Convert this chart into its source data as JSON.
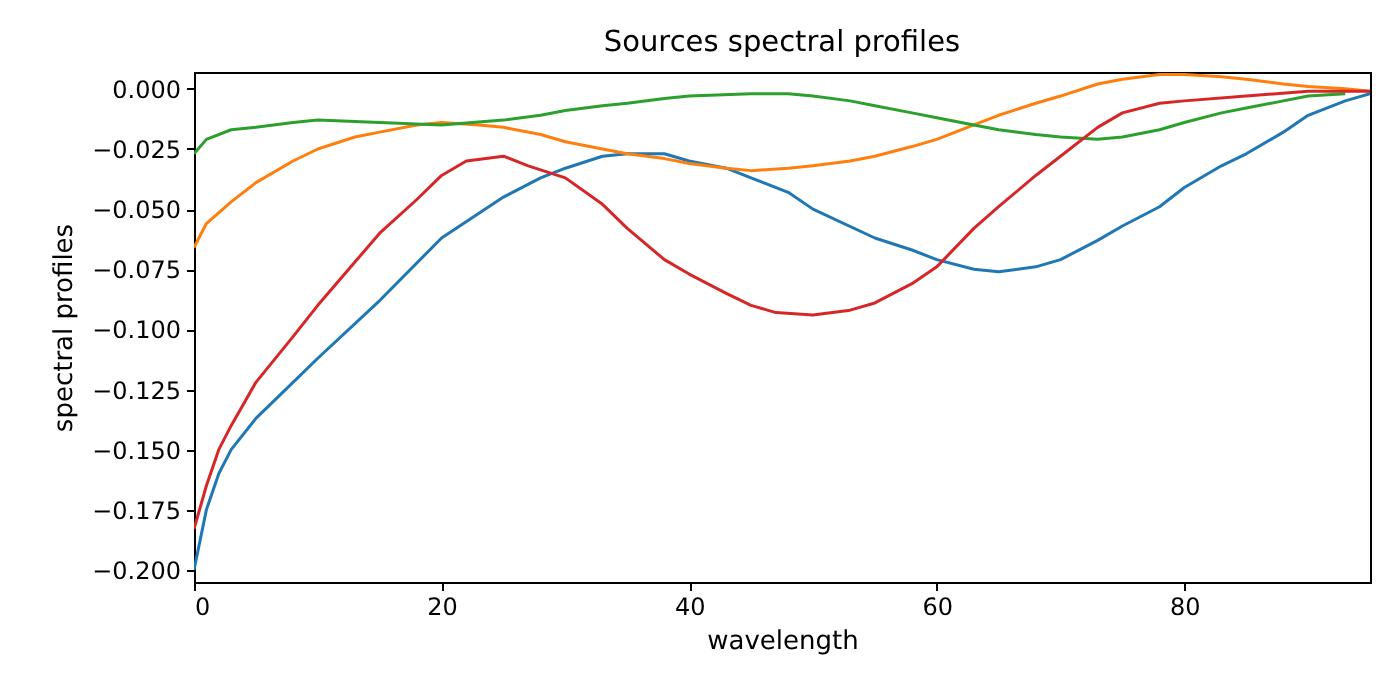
{
  "chart_data": {
    "type": "line",
    "title": "Sources spectral profiles",
    "xlabel": "wavelength",
    "ylabel": "spectral profiles",
    "xlim": [
      0,
      95
    ],
    "ylim": [
      -0.205,
      0.007
    ],
    "xticks": [
      0,
      20,
      40,
      60,
      80
    ],
    "yticks": [
      {
        "value": 0,
        "label": "0.000"
      },
      {
        "value": -0.025,
        "label": "−0.025"
      },
      {
        "value": -0.05,
        "label": "−0.050"
      },
      {
        "value": -0.075,
        "label": "−0.075"
      },
      {
        "value": -0.1,
        "label": "−0.100"
      },
      {
        "value": -0.125,
        "label": "−0.125"
      },
      {
        "value": -0.15,
        "label": "−0.150"
      },
      {
        "value": -0.175,
        "label": "−0.175"
      },
      {
        "value": -0.2,
        "label": "−0.200"
      }
    ],
    "grid": false,
    "legend": false,
    "marker": "none",
    "line_style": "solid",
    "series": [
      {
        "color": "#1f77b4",
        "x": [
          0,
          1,
          2,
          3,
          5,
          8,
          10,
          15,
          20,
          25,
          28,
          30,
          33,
          35,
          38,
          40,
          43,
          45,
          48,
          50,
          55,
          58,
          60,
          63,
          65,
          68,
          70,
          73,
          75,
          78,
          80,
          83,
          85,
          88,
          90,
          93,
          95
        ],
        "values": [
          -0.2,
          -0.175,
          -0.16,
          -0.15,
          -0.137,
          -0.122,
          -0.112,
          -0.088,
          -0.062,
          -0.045,
          -0.037,
          -0.033,
          -0.028,
          -0.027,
          -0.027,
          -0.03,
          -0.033,
          -0.037,
          -0.043,
          -0.05,
          -0.062,
          -0.067,
          -0.071,
          -0.075,
          -0.076,
          -0.074,
          -0.071,
          -0.063,
          -0.057,
          -0.049,
          -0.041,
          -0.032,
          -0.027,
          -0.018,
          -0.011,
          -0.005,
          -0.002
        ]
      },
      {
        "color": "#ff7f0e",
        "x": [
          0,
          1,
          3,
          5,
          8,
          10,
          13,
          15,
          18,
          20,
          23,
          25,
          28,
          30,
          33,
          35,
          38,
          40,
          43,
          45,
          48,
          50,
          53,
          55,
          58,
          60,
          63,
          65,
          68,
          70,
          73,
          75,
          78,
          80,
          83,
          85,
          88,
          90,
          93,
          95
        ],
        "values": [
          -0.066,
          -0.056,
          -0.047,
          -0.039,
          -0.03,
          -0.025,
          -0.02,
          -0.018,
          -0.015,
          -0.014,
          -0.015,
          -0.016,
          -0.019,
          -0.022,
          -0.025,
          -0.027,
          -0.029,
          -0.031,
          -0.033,
          -0.034,
          -0.033,
          -0.032,
          -0.03,
          -0.028,
          -0.024,
          -0.021,
          -0.015,
          -0.011,
          -0.006,
          -0.003,
          0.002,
          0.004,
          0.006,
          0.006,
          0.005,
          0.004,
          0.002,
          0.001,
          0,
          -0.001
        ]
      },
      {
        "color": "#2ca02c",
        "x": [
          0,
          1,
          3,
          5,
          8,
          10,
          15,
          20,
          25,
          28,
          30,
          33,
          35,
          38,
          40,
          45,
          48,
          50,
          53,
          55,
          58,
          60,
          63,
          65,
          68,
          70,
          73,
          75,
          78,
          80,
          83,
          85,
          88,
          90,
          93
        ],
        "values": [
          -0.027,
          -0.021,
          -0.017,
          -0.016,
          -0.014,
          -0.013,
          -0.014,
          -0.015,
          -0.013,
          -0.011,
          -0.009,
          -0.007,
          -0.006,
          -0.004,
          -0.003,
          -0.002,
          -0.002,
          -0.003,
          -0.005,
          -0.007,
          -0.01,
          -0.012,
          -0.015,
          -0.017,
          -0.019,
          -0.02,
          -0.021,
          -0.02,
          -0.017,
          -0.014,
          -0.01,
          -0.008,
          -0.005,
          -0.003,
          -0.002
        ]
      },
      {
        "color": "#d62728",
        "x": [
          0,
          1,
          2,
          3,
          5,
          8,
          10,
          13,
          15,
          18,
          20,
          22,
          25,
          27,
          30,
          33,
          35,
          38,
          40,
          43,
          45,
          47,
          50,
          53,
          55,
          58,
          60,
          63,
          65,
          68,
          70,
          73,
          75,
          78,
          80,
          85,
          90,
          95
        ],
        "values": [
          -0.183,
          -0.165,
          -0.15,
          -0.14,
          -0.122,
          -0.103,
          -0.09,
          -0.072,
          -0.06,
          -0.046,
          -0.036,
          -0.03,
          -0.028,
          -0.032,
          -0.037,
          -0.048,
          -0.058,
          -0.071,
          -0.077,
          -0.085,
          -0.09,
          -0.093,
          -0.094,
          -0.092,
          -0.089,
          -0.081,
          -0.074,
          -0.058,
          -0.049,
          -0.036,
          -0.028,
          -0.016,
          -0.01,
          -0.006,
          -0.005,
          -0.003,
          -0.001,
          -0.001
        ]
      }
    ]
  }
}
